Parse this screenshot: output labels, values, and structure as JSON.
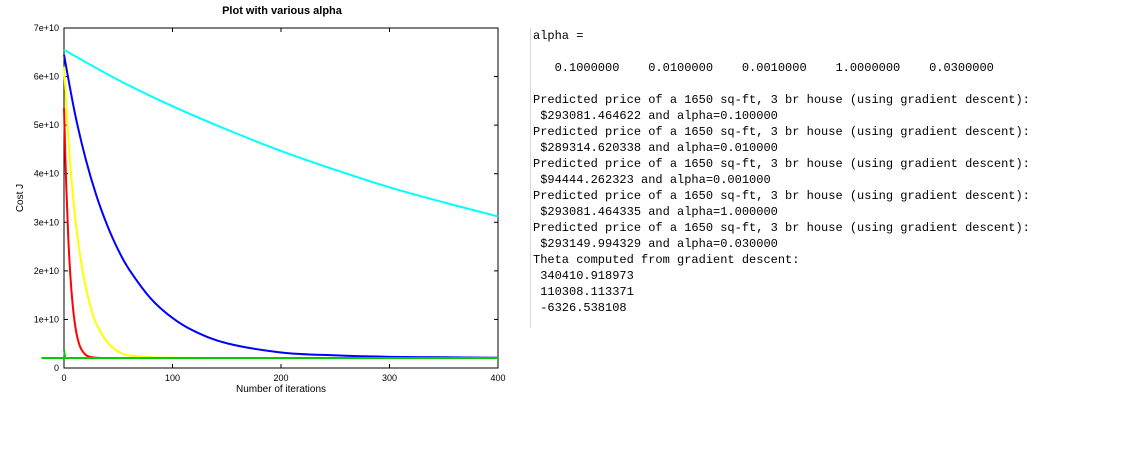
{
  "chart_data": {
    "type": "line",
    "title": "Plot with various alpha",
    "xlabel": "Number of iterations",
    "ylabel": "Cost J",
    "xlim": [
      0,
      400
    ],
    "ylim": [
      0,
      70000000000
    ],
    "x_ticks": [
      0,
      100,
      200,
      300,
      400
    ],
    "x_tick_labels": [
      "0",
      "100",
      "200",
      "300",
      "400"
    ],
    "y_ticks": [
      0,
      10000000000,
      20000000000,
      30000000000,
      40000000000,
      50000000000,
      60000000000,
      70000000000
    ],
    "y_tick_labels": [
      "0",
      "1e+10",
      "2e+10",
      "3e+10",
      "4e+10",
      "5e+10",
      "6e+10",
      "7e+10"
    ],
    "grid": false,
    "series": [
      {
        "color": "#00ffff",
        "x": [
          0,
          50,
          100,
          150,
          200,
          250,
          300,
          350,
          400
        ],
        "values": [
          65500000000,
          59300000000,
          53900000000,
          49100000000,
          44700000000,
          40800000000,
          37200000000,
          34100000000,
          31200000000
        ]
      },
      {
        "color": "#0000ff",
        "x": [
          0,
          10,
          20,
          30,
          40,
          50,
          60,
          80,
          100,
          120,
          150,
          200,
          250,
          300,
          350,
          400
        ],
        "values": [
          64500000000,
          52500000000,
          43000000000,
          35400000000,
          29300000000,
          24300000000,
          20300000000,
          14300000000,
          10300000000,
          7600000000,
          5100000000,
          3200000000,
          2600000000,
          2300000000,
          2200000000,
          2100000000
        ]
      },
      {
        "color": "#ffff00",
        "x": [
          0,
          5,
          10,
          15,
          20,
          25,
          30,
          40,
          50,
          60,
          80,
          100,
          150,
          200,
          300,
          400
        ],
        "values": [
          62000000000,
          44200000000,
          31600000000,
          22900000000,
          16700000000,
          12200000000,
          9000000000,
          5300000000,
          3400000000,
          2600000000,
          2200000000,
          2100000000,
          2050000000,
          2050000000,
          2050000000,
          2050000000
        ]
      },
      {
        "color": "#ff0000",
        "x": [
          0,
          2,
          4,
          6,
          8,
          10,
          12,
          15,
          20,
          25,
          30,
          40,
          60,
          400
        ],
        "values": [
          53500000000,
          38000000000,
          26500000000,
          18600000000,
          13000000000,
          9200000000,
          6600000000,
          4300000000,
          2700000000,
          2250000000,
          2100000000,
          2050000000,
          2050000000,
          2050000000
        ]
      },
      {
        "color": "#00cc00",
        "x": [
          0,
          1,
          2,
          3,
          4,
          6,
          10,
          400
        ],
        "values": [
          3800000000,
          2300000000,
          2100000000,
          2060000000,
          2050000000,
          2050000000,
          2050000000,
          2050000000
        ]
      }
    ]
  },
  "console": {
    "lines": [
      "alpha =",
      "",
      "   0.1000000    0.0100000    0.0010000    1.0000000    0.0300000",
      "",
      "Predicted price of a 1650 sq-ft, 3 br house (using gradient descent):",
      " $293081.464622 and alpha=0.100000",
      "Predicted price of a 1650 sq-ft, 3 br house (using gradient descent):",
      " $289314.620338 and alpha=0.010000",
      "Predicted price of a 1650 sq-ft, 3 br house (using gradient descent):",
      " $94444.262323 and alpha=0.001000",
      "Predicted price of a 1650 sq-ft, 3 br house (using gradient descent):",
      " $293081.464335 and alpha=1.000000",
      "Predicted price of a 1650 sq-ft, 3 br house (using gradient descent):",
      " $293149.994329 and alpha=0.030000",
      "Theta computed from gradient descent:",
      " 340410.918973",
      " 110308.113371",
      " -6326.538108"
    ]
  }
}
